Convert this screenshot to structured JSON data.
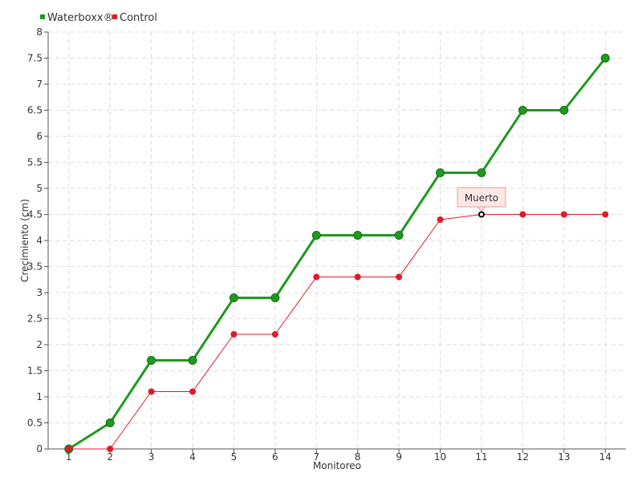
{
  "chart_data": {
    "type": "line",
    "xlabel": "Monitoreo",
    "ylabel": "Crecimiento (cm)",
    "x": [
      1,
      2,
      3,
      4,
      5,
      6,
      7,
      8,
      9,
      10,
      11,
      12,
      13,
      14
    ],
    "xlim": [
      0.5,
      14.5
    ],
    "ylim": [
      0,
      8
    ],
    "ytick_step": 0.5,
    "grid": true,
    "legend_position": "top-left",
    "series": [
      {
        "name": "Waterboxx®",
        "color": "#1f9a1f",
        "values": [
          0,
          0.5,
          1.7,
          1.7,
          2.9,
          2.9,
          4.1,
          4.1,
          4.1,
          5.3,
          5.3,
          6.5,
          6.5,
          7.5
        ]
      },
      {
        "name": "Control",
        "color": "#e01b2a",
        "values": [
          0,
          0,
          1.1,
          1.1,
          2.2,
          2.2,
          3.3,
          3.3,
          3.3,
          4.4,
          4.5,
          4.5,
          4.5,
          4.5
        ]
      }
    ],
    "annotations": [
      {
        "series": "Control",
        "x": 11,
        "y": 4.5,
        "text": "Muerto"
      }
    ]
  }
}
